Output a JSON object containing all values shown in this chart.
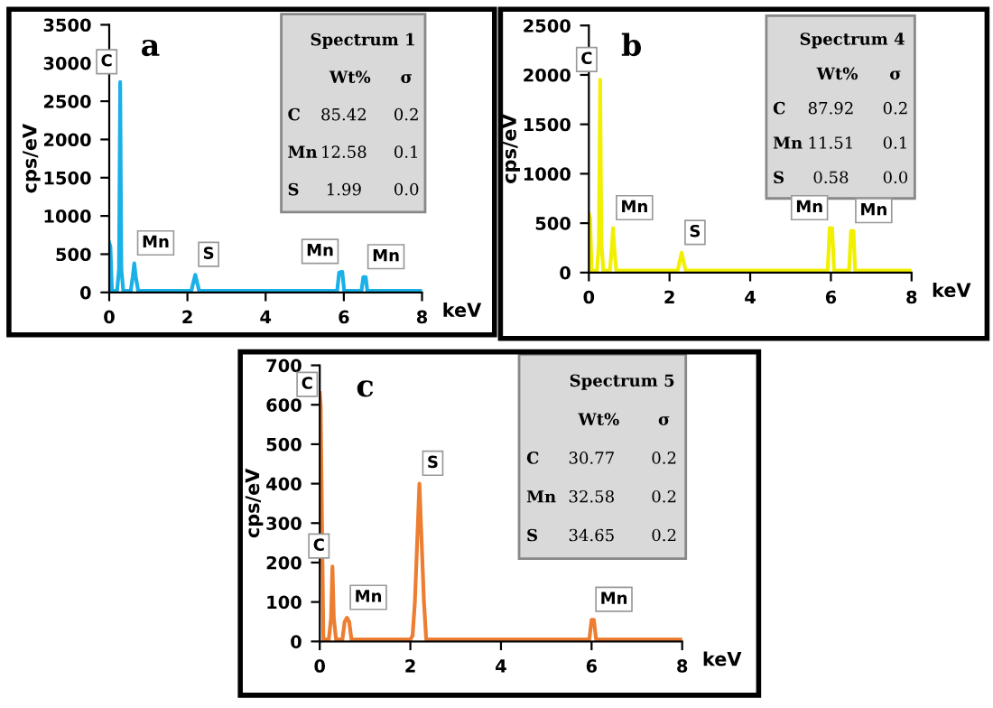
{
  "chart_data": [
    {
      "type": "line",
      "title": "a",
      "xlabel": "keV",
      "ylabel": "cps/eV",
      "xlim": [
        0,
        8
      ],
      "xticks": [
        0,
        2,
        4,
        6,
        8
      ],
      "ylim": [
        0,
        3500
      ],
      "yticks": [
        0,
        500,
        1000,
        1500,
        2000,
        2500,
        3000,
        3500
      ],
      "grid": false,
      "marker": "none",
      "line_style": "solid",
      "series": [
        {
          "color": "#1ab0e8",
          "x": [
            0,
            0.03,
            0.07,
            0.2,
            0.25,
            0.28,
            0.31,
            0.36,
            0.55,
            0.6,
            0.64,
            0.68,
            0.74,
            1.5,
            2.1,
            2.2,
            2.3,
            3,
            4,
            5,
            5.83,
            5.88,
            5.96,
            6.01,
            6.45,
            6.5,
            6.56,
            6.6,
            8
          ],
          "values": [
            650,
            600,
            20,
            20,
            300,
            2750,
            300,
            20,
            20,
            200,
            380,
            200,
            20,
            20,
            20,
            230,
            20,
            20,
            20,
            20,
            20,
            260,
            270,
            20,
            20,
            200,
            200,
            20,
            20
          ]
        }
      ],
      "annotations": [
        {
          "text": "C",
          "x": 0.28,
          "y": 2750
        },
        {
          "text": "Mn",
          "x": 0.64,
          "y": 380
        },
        {
          "text": "S",
          "x": 2.2,
          "y": 230
        },
        {
          "text": "Mn",
          "x": 5.94,
          "y": 270
        },
        {
          "text": "Mn",
          "x": 6.53,
          "y": 200
        },
        "Spectrum 1",
        "Wt%",
        "σ",
        "C",
        "85.42",
        "0.2",
        "Mn",
        "12.58",
        "0.1",
        "S",
        "1.99",
        "0.0"
      ]
    },
    {
      "type": "line",
      "title": "b",
      "xlabel": "keV",
      "ylabel": "cps/eV",
      "xlim": [
        0,
        8
      ],
      "xticks": [
        0,
        2,
        4,
        6,
        8
      ],
      "ylim": [
        0,
        2500
      ],
      "yticks": [
        0,
        500,
        1000,
        1500,
        2000,
        2500
      ],
      "grid": false,
      "marker": "none",
      "line_style": "solid",
      "series": [
        {
          "color": "#f0f000",
          "x": [
            0,
            0.03,
            0.07,
            0.2,
            0.25,
            0.28,
            0.31,
            0.36,
            0.52,
            0.57,
            0.6,
            0.63,
            0.68,
            1.5,
            2.2,
            2.3,
            2.4,
            3,
            4,
            5,
            5.92,
            5.97,
            6.03,
            6.08,
            6.45,
            6.5,
            6.56,
            6.6,
            8
          ],
          "values": [
            600,
            550,
            20,
            20,
            300,
            1950,
            300,
            20,
            20,
            250,
            450,
            250,
            20,
            20,
            20,
            200,
            20,
            20,
            20,
            20,
            20,
            450,
            450,
            20,
            20,
            420,
            420,
            20,
            20
          ]
        }
      ],
      "annotations": [
        {
          "text": "C",
          "x": 0.28,
          "y": 1950
        },
        {
          "text": "Mn",
          "x": 0.6,
          "y": 450
        },
        {
          "text": "S",
          "x": 2.3,
          "y": 200
        },
        {
          "text": "Mn",
          "x": 6.0,
          "y": 450
        },
        {
          "text": "Mn",
          "x": 6.53,
          "y": 420
        },
        "Spectrum 4",
        "Wt%",
        "σ",
        "C",
        "87.92",
        "0.2",
        "Mn",
        "11.51",
        "0.1",
        "S",
        "0.58",
        "0.0"
      ]
    },
    {
      "type": "line",
      "title": "c",
      "xlabel": "keV",
      "ylabel": "cps/eV",
      "xlim": [
        0,
        8
      ],
      "xticks": [
        0,
        2,
        4,
        6,
        8
      ],
      "ylim": [
        0,
        700
      ],
      "yticks": [
        0,
        100,
        200,
        300,
        400,
        500,
        600,
        700
      ],
      "grid": false,
      "marker": "none",
      "line_style": "solid",
      "series": [
        {
          "color": "#ed7d31",
          "x": [
            0,
            0.02,
            0.05,
            0.08,
            0.2,
            0.25,
            0.28,
            0.31,
            0.36,
            0.5,
            0.55,
            0.6,
            0.65,
            0.7,
            1.5,
            2.0,
            2.05,
            2.1,
            2.2,
            2.3,
            2.35,
            3,
            4,
            5,
            5.95,
            6.0,
            6.05,
            6.1,
            8
          ],
          "values": [
            630,
            600,
            300,
            5,
            5,
            60,
            190,
            60,
            5,
            5,
            50,
            60,
            50,
            5,
            5,
            5,
            15,
            100,
            400,
            100,
            5,
            5,
            5,
            5,
            5,
            55,
            55,
            5,
            5
          ]
        }
      ],
      "annotations": [
        {
          "text": "C",
          "x": 0.02,
          "y": 600
        },
        {
          "text": "C",
          "x": 0.28,
          "y": 190
        },
        {
          "text": "Mn",
          "x": 0.6,
          "y": 60
        },
        {
          "text": "S",
          "x": 2.2,
          "y": 400
        },
        {
          "text": "Mn",
          "x": 6.02,
          "y": 55
        },
        "Spectrum 5",
        "Wt%",
        "σ",
        "C",
        "30.77",
        "0.2",
        "Mn",
        "32.58",
        "0.2",
        "S",
        "34.65",
        "0.2"
      ]
    }
  ]
}
